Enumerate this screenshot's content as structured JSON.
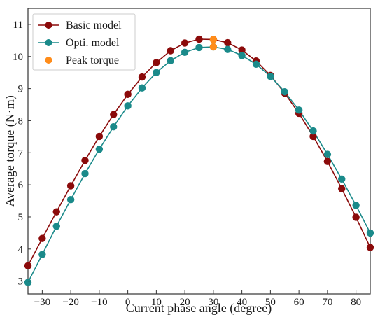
{
  "chart_data": {
    "type": "line",
    "xlabel": "Current phase angle (degree)",
    "ylabel": "Average torque (N·m)",
    "xlim": [
      -35,
      85
    ],
    "ylim": [
      2.6,
      11.5
    ],
    "xticks": [
      -30,
      -20,
      -10,
      0,
      10,
      20,
      30,
      40,
      50,
      60,
      70,
      80
    ],
    "yticks": [
      3,
      4,
      5,
      6,
      7,
      8,
      9,
      10,
      11
    ],
    "grid": false,
    "legend_position": "top-left",
    "x": [
      -35,
      -30,
      -25,
      -20,
      -15,
      -10,
      -5,
      0,
      5,
      10,
      15,
      20,
      25,
      30,
      35,
      40,
      45,
      50,
      55,
      60,
      65,
      70,
      75,
      80,
      85
    ],
    "series": [
      {
        "name": "Basic model",
        "color": "#8b0a0a",
        "values": [
          3.48,
          4.33,
          5.16,
          5.97,
          6.76,
          7.51,
          8.19,
          8.82,
          9.36,
          9.81,
          10.18,
          10.42,
          10.54,
          10.53,
          10.43,
          10.2,
          9.86,
          9.41,
          8.86,
          8.23,
          7.51,
          6.73,
          5.88,
          4.99,
          4.05
        ]
      },
      {
        "name": "Opti. model",
        "color": "#1a8a8a",
        "values": [
          2.96,
          3.83,
          4.71,
          5.54,
          6.35,
          7.11,
          7.81,
          8.46,
          9.02,
          9.5,
          9.87,
          10.13,
          10.28,
          10.3,
          10.22,
          10.03,
          9.76,
          9.38,
          8.9,
          8.33,
          7.68,
          6.95,
          6.18,
          5.36,
          4.5
        ]
      }
    ],
    "peak_torque": {
      "name": "Peak torque",
      "color": "#ff8c1a",
      "points": [
        {
          "x": 30,
          "y": 10.53
        },
        {
          "x": 30,
          "y": 10.3
        }
      ]
    }
  }
}
